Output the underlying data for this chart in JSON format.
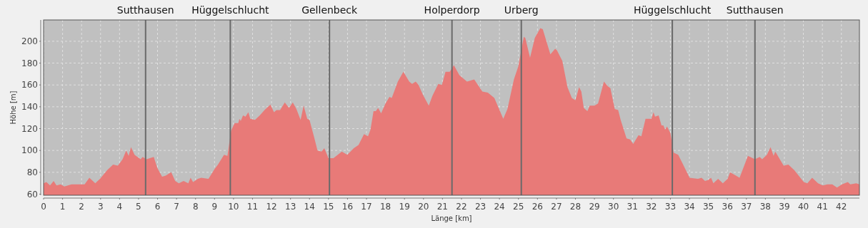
{
  "chart_data": {
    "type": "area",
    "xlabel": "Länge [km]",
    "ylabel": "Höhe [m]",
    "xlim": [
      0,
      42.95
    ],
    "ylim": [
      59,
      219.5
    ],
    "xticks": [
      0,
      1,
      2,
      3,
      4,
      5,
      6,
      7,
      8,
      9,
      10,
      11,
      12,
      13,
      14,
      15,
      16,
      17,
      18,
      19,
      20,
      21,
      22,
      23,
      24,
      25,
      26,
      27,
      28,
      29,
      30,
      31,
      32,
      33,
      34,
      35,
      36,
      37,
      38,
      39,
      40,
      41,
      42
    ],
    "yticks": [
      60,
      80,
      100,
      120,
      140,
      160,
      180,
      200
    ],
    "grid": true,
    "x": [
      0,
      0.15,
      0.34,
      0.53,
      0.68,
      0.9,
      1.09,
      1.47,
      1.84,
      2.16,
      2.41,
      2.72,
      2.97,
      3.35,
      3.66,
      3.91,
      4.16,
      4.35,
      4.48,
      4.6,
      4.79,
      5.11,
      5.21,
      5.42,
      5.8,
      5.99,
      6.24,
      6.43,
      6.62,
      6.72,
      6.93,
      7.12,
      7.37,
      7.62,
      7.74,
      7.87,
      8.12,
      8.3,
      8.68,
      9.0,
      9.18,
      9.5,
      9.68,
      9.87,
      10.06,
      10.25,
      10.31,
      10.38,
      10.5,
      10.63,
      10.78,
      10.88,
      11.13,
      11.38,
      11.63,
      11.94,
      12.13,
      12.26,
      12.45,
      12.7,
      12.92,
      13.12,
      13.31,
      13.53,
      13.69,
      13.88,
      14.0,
      14.26,
      14.42,
      14.63,
      14.78,
      15.0,
      15.26,
      15.7,
      15.99,
      16.33,
      16.58,
      16.87,
      17.08,
      17.21,
      17.37,
      17.49,
      17.61,
      17.77,
      18.0,
      18.21,
      18.33,
      18.65,
      18.94,
      19.25,
      19.4,
      19.59,
      19.74,
      19.97,
      20.28,
      20.47,
      20.78,
      20.97,
      21.16,
      21.38,
      21.6,
      21.89,
      22.29,
      22.67,
      23.1,
      23.39,
      23.73,
      23.98,
      24.2,
      24.42,
      24.76,
      24.99,
      25.28,
      25.36,
      25.61,
      25.86,
      26.15,
      26.28,
      26.68,
      26.93,
      27.02,
      27.31,
      27.58,
      27.81,
      28.0,
      28.19,
      28.31,
      28.44,
      28.63,
      28.75,
      29.0,
      29.19,
      29.5,
      29.69,
      29.84,
      30.07,
      30.25,
      30.38,
      30.69,
      30.88,
      31.04,
      31.32,
      31.47,
      31.69,
      32.0,
      32.11,
      32.19,
      32.38,
      32.53,
      32.63,
      32.72,
      32.82,
      33.0,
      33.17,
      33.41,
      33.64,
      34.01,
      34.45,
      34.64,
      34.82,
      35.0,
      35.14,
      35.26,
      35.51,
      35.76,
      36.01,
      36.14,
      36.45,
      36.64,
      37.08,
      37.45,
      37.7,
      37.83,
      38.08,
      38.27,
      38.43,
      38.52,
      38.96,
      39.21,
      39.52,
      40.02,
      40.21,
      40.46,
      40.77,
      41.02,
      41.27,
      41.52,
      41.77,
      42.03,
      42.34,
      42.47,
      42.78,
      42.95
    ],
    "series": [
      {
        "color": "#e87a78",
        "values": [
          70,
          71,
          68,
          72,
          68,
          69,
          67,
          69,
          69,
          69,
          75,
          70,
          74,
          82,
          87,
          86,
          92,
          100,
          95,
          103,
          96,
          92,
          94,
          92,
          94,
          84,
          76,
          77,
          79,
          80,
          72,
          70,
          72,
          70,
          75,
          71,
          74,
          75,
          74,
          83,
          87,
          96,
          95,
          118,
          125,
          125,
          129,
          127,
          132,
          131,
          135,
          129,
          128,
          132,
          137,
          142,
          135,
          137,
          137,
          144,
          139,
          144,
          138,
          128,
          141,
          129,
          128,
          111,
          100,
          99,
          102,
          93,
          93,
          99,
          96,
          102,
          105,
          115,
          113,
          119,
          136,
          136,
          139,
          134,
          143,
          149,
          148,
          163,
          172,
          163,
          161,
          163,
          160,
          151,
          141,
          150,
          161,
          160,
          172,
          172,
          178,
          169,
          163,
          165,
          154,
          153,
          148,
          138,
          129,
          138,
          165,
          177,
          204,
          203,
          185,
          203,
          212,
          211,
          188,
          193,
          192,
          182,
          158,
          148,
          146,
          158,
          154,
          139,
          136,
          141,
          141,
          143,
          163,
          159,
          157,
          138,
          137,
          128,
          111,
          110,
          106,
          114,
          113,
          129,
          129,
          135,
          131,
          132,
          123,
          123,
          119,
          122,
          116,
          98,
          96,
          88,
          75,
          74,
          75,
          72,
          73,
          75,
          70,
          74,
          70,
          74,
          80,
          77,
          75,
          95,
          92,
          94,
          92,
          96,
          103,
          95,
          99,
          86,
          87,
          82,
          71,
          70,
          75,
          70,
          68,
          69,
          69,
          66,
          69,
          71,
          69,
          70,
          69
        ]
      }
    ],
    "ref_lines": [
      {
        "axis": "x",
        "value": 5.37,
        "label": "Sutthausen"
      },
      {
        "axis": "x",
        "value": 9.83,
        "label": "Hüggelschlucht"
      },
      {
        "axis": "x",
        "value": 15.05,
        "label": "Gellenbeck"
      },
      {
        "axis": "x",
        "value": 21.5,
        "label": "Holperdorp"
      },
      {
        "axis": "x",
        "value": 25.15,
        "label": "Urberg"
      },
      {
        "axis": "x",
        "value": 33.1,
        "label": "Hüggelschlucht"
      },
      {
        "axis": "x",
        "value": 37.45,
        "label": "Sutthausen"
      }
    ]
  }
}
